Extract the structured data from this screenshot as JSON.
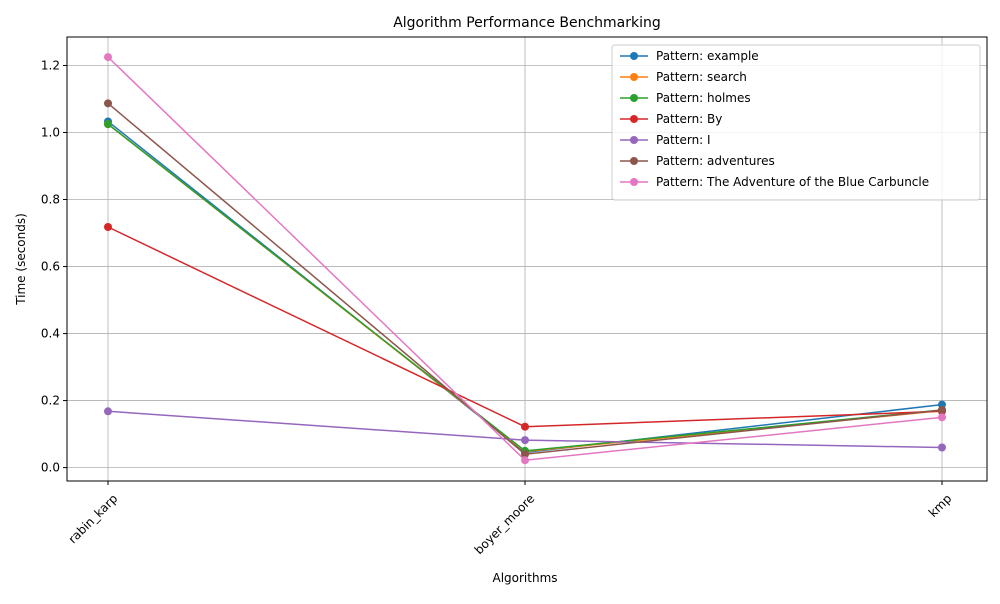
{
  "chart_data": {
    "type": "line",
    "title": "Algorithm Performance Benchmarking",
    "xlabel": "Algorithms",
    "ylabel": "Time (seconds)",
    "categories": [
      "rabin_karp",
      "boyer_moore",
      "kmp"
    ],
    "ylim": [
      -0.04,
      1.285
    ],
    "yticks": [
      "0.0",
      "0.2",
      "0.4",
      "0.6",
      "0.8",
      "1.0",
      "1.2"
    ],
    "grid": true,
    "legend_position": "top-right",
    "series": [
      {
        "name": "Pattern: example",
        "color": "#1f77b4",
        "values": [
          1.033,
          0.045,
          0.188
        ]
      },
      {
        "name": "Pattern: search",
        "color": "#ff7f0e",
        "values": [
          1.025,
          0.048,
          0.17
        ]
      },
      {
        "name": "Pattern: holmes",
        "color": "#2ca02c",
        "values": [
          1.025,
          0.05,
          0.172
        ]
      },
      {
        "name": "Pattern: By",
        "color": "#d62728",
        "values": [
          0.718,
          0.122,
          0.168
        ]
      },
      {
        "name": "Pattern: I",
        "color": "#9467bd",
        "values": [
          0.168,
          0.082,
          0.06
        ]
      },
      {
        "name": "Pattern: adventures",
        "color": "#8c564b",
        "values": [
          1.087,
          0.04,
          0.172
        ]
      },
      {
        "name": "Pattern: The Adventure of the Blue Carbuncle",
        "color": "#e377c2",
        "values": [
          1.225,
          0.022,
          0.15
        ]
      }
    ]
  }
}
